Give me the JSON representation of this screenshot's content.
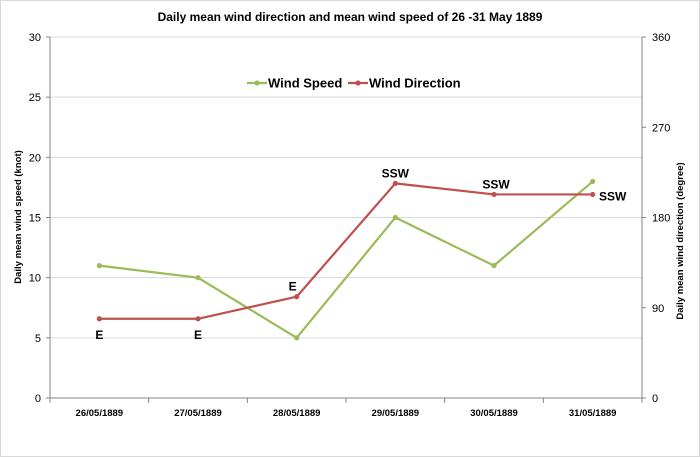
{
  "chart_data": {
    "type": "line",
    "title": "Daily mean wind direction and mean wind speed of 26 -31 May 1889",
    "categories": [
      "26/05/1889",
      "27/05/1889",
      "28/05/1889",
      "29/05/1889",
      "30/05/1889",
      "31/05/1889"
    ],
    "y_left": {
      "label": "Daily mean wind speed (knot)",
      "range": [
        0,
        30
      ],
      "ticks": [
        "0",
        "5",
        "10",
        "15",
        "20",
        "25",
        "30"
      ]
    },
    "y_right": {
      "label": "Daily mean wind direction (degree)",
      "range": [
        0,
        360
      ],
      "ticks": [
        "0",
        "90",
        "180",
        "270",
        "360"
      ]
    },
    "series": [
      {
        "name": "Wind Speed",
        "axis": "left",
        "color": "#9bbb59",
        "values": [
          11,
          10,
          5,
          15,
          11,
          18
        ]
      },
      {
        "name": "Wind Direction",
        "axis": "right",
        "color": "#c0504d",
        "values": [
          79,
          79,
          101,
          214,
          203,
          203
        ],
        "data_labels": [
          "E",
          "E",
          "E",
          "SSW",
          "SSW",
          "SSW"
        ]
      }
    ],
    "grid": "horizontal",
    "legend_placement": "top-center"
  }
}
